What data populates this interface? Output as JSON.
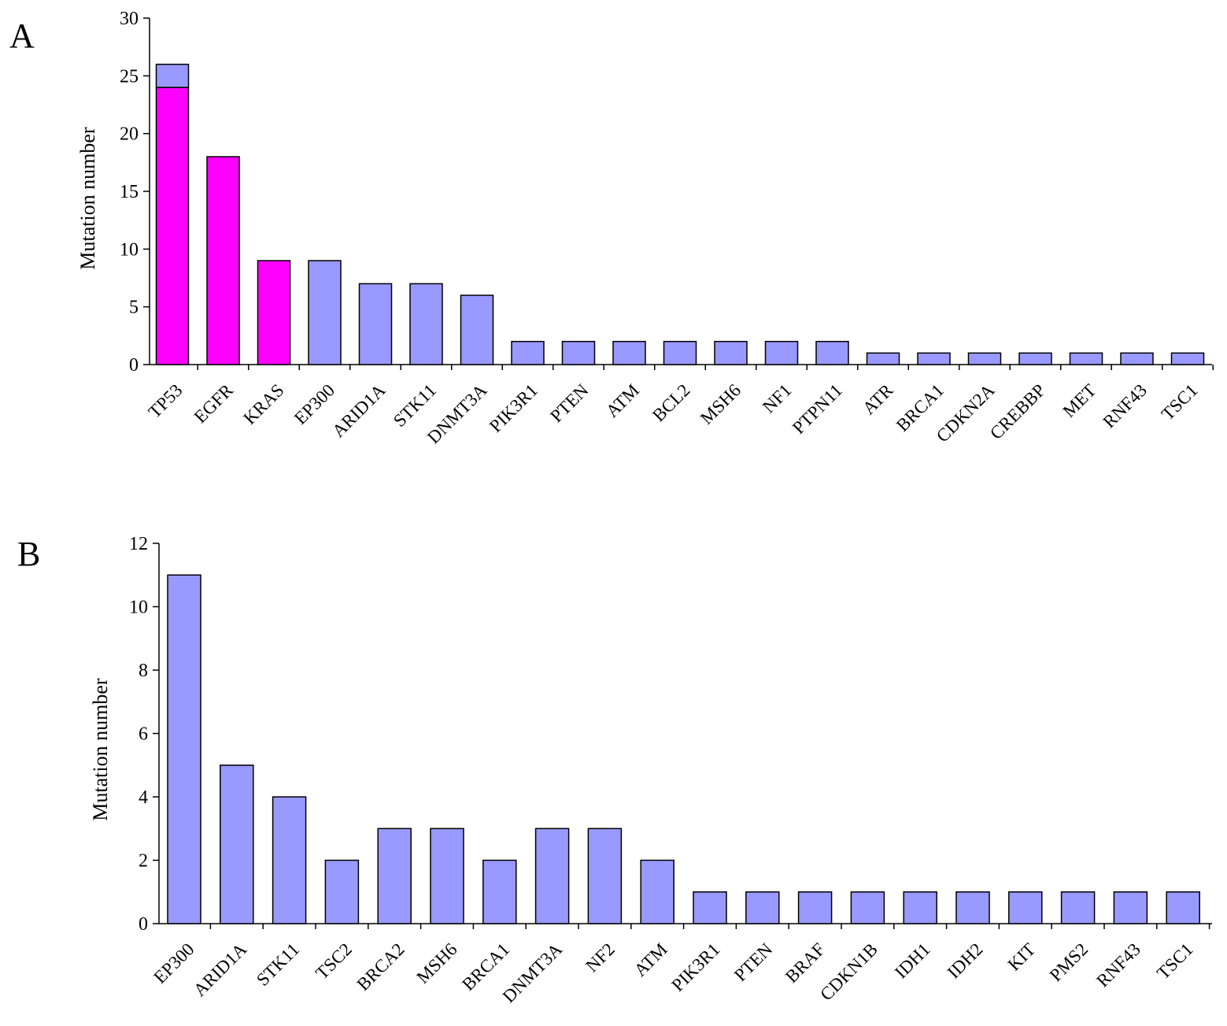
{
  "colors": {
    "lavender": "#9999ff",
    "magenta": "#ff00ff",
    "axis": "#000000"
  },
  "chart_data": [
    {
      "type": "bar",
      "panel_label": "A",
      "ylabel": "Mutation number",
      "ylim": [
        0,
        30
      ],
      "yticks": [
        0,
        5,
        10,
        15,
        20,
        25,
        30
      ],
      "categories": [
        "TP53",
        "EGFR",
        "KRAS",
        "EP300",
        "ARID1A",
        "STK11",
        "DNMT3A",
        "PIK3R1",
        "PTEN",
        "ATM",
        "BCL2",
        "MSH6",
        "NF1",
        "PTPN11",
        "ATR",
        "BRCA1",
        "CDKN2A",
        "CREBBP",
        "MET",
        "RNF43",
        "TSC1"
      ],
      "stacked": true,
      "series": [
        {
          "color": "#ff00ff",
          "values": [
            24,
            18,
            9,
            0,
            0,
            0,
            0,
            0,
            0,
            0,
            0,
            0,
            0,
            0,
            0,
            0,
            0,
            0,
            0,
            0,
            0
          ]
        },
        {
          "color": "#9999ff",
          "values": [
            2,
            0,
            0,
            9,
            7,
            7,
            6,
            2,
            2,
            2,
            2,
            2,
            2,
            2,
            1,
            1,
            1,
            1,
            1,
            1,
            1
          ]
        }
      ]
    },
    {
      "type": "bar",
      "panel_label": "B",
      "ylabel": "Mutation number",
      "ylim": [
        0,
        12
      ],
      "yticks": [
        0,
        2,
        4,
        6,
        8,
        10,
        12
      ],
      "categories": [
        "EP300",
        "ARID1A",
        "STK11",
        "TSC2",
        "BRCA2",
        "MSH6",
        "BRCA1",
        "DNMT3A",
        "NF2",
        "ATM",
        "PIK3R1",
        "PTEN",
        "BRAF",
        "CDKN1B",
        "IDH1",
        "IDH2",
        "KIT",
        "PMS2",
        "RNF43",
        "TSC1"
      ],
      "stacked": false,
      "series": [
        {
          "color": "#9999ff",
          "values": [
            11,
            5,
            4,
            2,
            3,
            3,
            2,
            3,
            3,
            2,
            1,
            1,
            1,
            1,
            1,
            1,
            1,
            1,
            1,
            1
          ]
        }
      ]
    }
  ]
}
